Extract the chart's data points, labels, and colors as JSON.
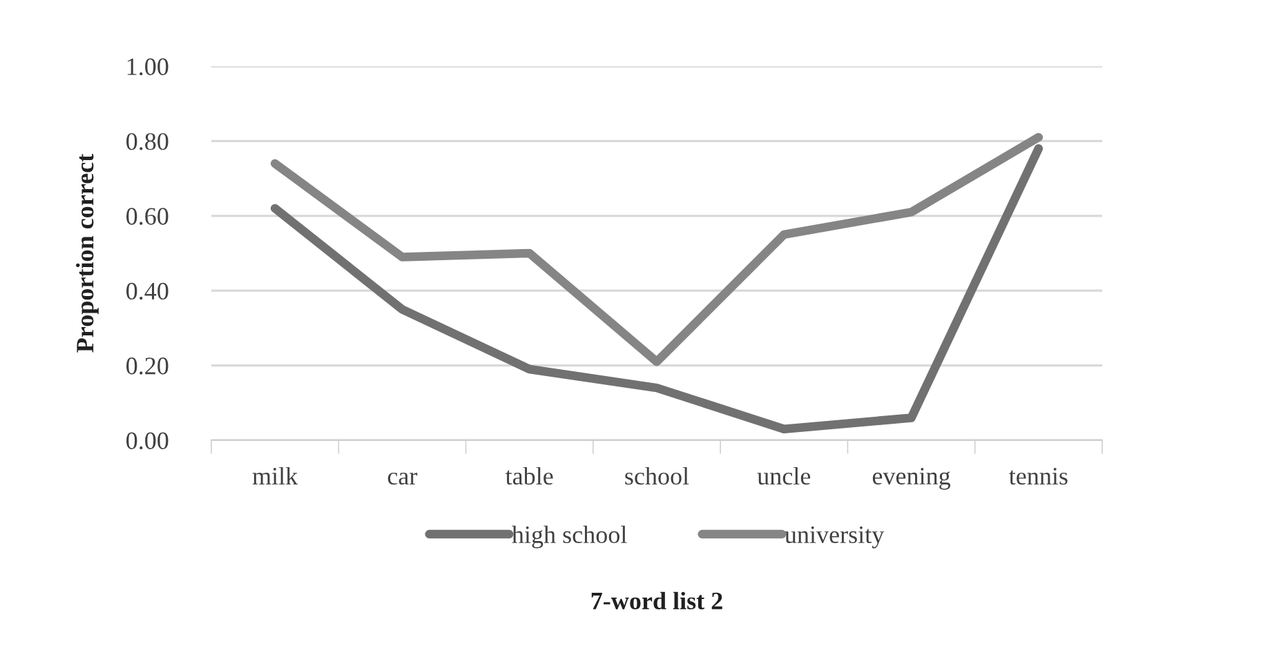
{
  "chart_data": {
    "type": "line",
    "xlabel": "7-word list 2",
    "ylabel": "Proportion correct",
    "categories": [
      "milk",
      "car",
      "table",
      "school",
      "uncle",
      "evening",
      "tennis"
    ],
    "series": [
      {
        "name": "high school",
        "color": "#717171",
        "values": [
          0.62,
          0.35,
          0.19,
          0.14,
          0.03,
          0.06,
          0.78
        ]
      },
      {
        "name": "university",
        "color": "#858585",
        "values": [
          0.74,
          0.49,
          0.5,
          0.21,
          0.55,
          0.61,
          0.81
        ]
      }
    ],
    "ylim": [
      0,
      1
    ],
    "yticks": [
      {
        "value": 0,
        "label": "0.00"
      },
      {
        "value": 0.2,
        "label": "0.20"
      },
      {
        "value": 0.4,
        "label": "0.40"
      },
      {
        "value": 0.6,
        "label": "0.60"
      },
      {
        "value": 0.8,
        "label": "0.80"
      },
      {
        "value": 1,
        "label": "1.00"
      }
    ],
    "grid": "y",
    "legend": "bottom",
    "marker": "none",
    "line_style": "solid"
  }
}
